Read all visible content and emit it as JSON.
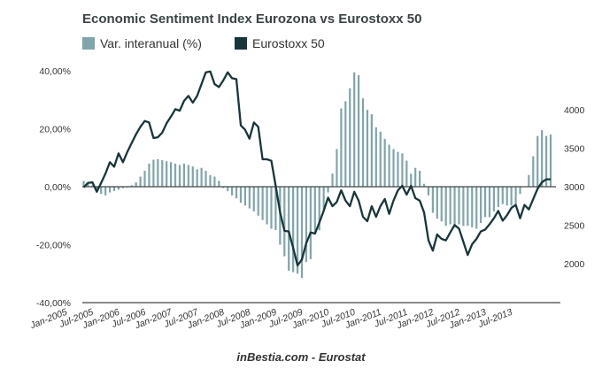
{
  "chart_data": {
    "type": "bar+line",
    "title": "Economic Sentiment Index Eurozona vs Eurostoxx 50",
    "source": "inBestia.com - Eurostat",
    "legend_placement": "top-left",
    "colors": {
      "bars": "#7fa5ab",
      "line": "#16363b",
      "axis": "#333333"
    },
    "x_tick_labels": [
      "Jan-2005",
      "Jul-2005",
      "Jan-2006",
      "Jul-2006",
      "Jan-2007",
      "Jul-2007",
      "Jan-2008",
      "Jul-2008",
      "Jan-2009",
      "Jul-2009",
      "Jan-2010",
      "Jul-2010",
      "Jan-2011",
      "Jul-2011",
      "Jan-2012",
      "Jul-2012",
      "Jan-2013",
      "Jul-2013"
    ],
    "x_start": "Jan-2005",
    "x_frequency": "monthly",
    "left_axis": {
      "ylim": [
        -40,
        40
      ],
      "ticks": [
        "40,00%",
        "20,00%",
        "0,00%",
        "-20,00%",
        "-40,00%"
      ],
      "tick_values": [
        40,
        20,
        0,
        -20,
        -40
      ]
    },
    "right_axis": {
      "ylim": [
        1494,
        4506
      ],
      "ticks": [
        "4000",
        "3500",
        "3000",
        "2500",
        "2000"
      ],
      "tick_values": [
        4000,
        3500,
        3000,
        2500,
        2000
      ]
    },
    "series": [
      {
        "name": "Var. interanual (%)",
        "type": "bar",
        "axis": "left",
        "values": [
          2,
          1,
          0.5,
          -2,
          -2.5,
          -3,
          -2,
          -1.5,
          -1,
          -0.5,
          -0.3,
          0.5,
          1.5,
          3.5,
          5.5,
          8,
          9.3,
          9.5,
          9.2,
          8.8,
          8.5,
          8,
          7.5,
          8,
          7.5,
          7,
          6,
          6.5,
          5.5,
          4,
          3.5,
          2,
          -0.5,
          -1.5,
          -3,
          -4,
          -5.5,
          -6.5,
          -7.5,
          -8.5,
          -10,
          -11.5,
          -13,
          -14.5,
          -15,
          -20,
          -24,
          -29,
          -29.5,
          -30,
          -31.5,
          -26,
          -25,
          -16,
          -15,
          -8,
          -2,
          4.5,
          13,
          27,
          29.5,
          34,
          39.5,
          38.5,
          30.5,
          26.5,
          25,
          20.5,
          19,
          16.5,
          14.5,
          13,
          12,
          11.5,
          9,
          4.5,
          6.5,
          5.5,
          1,
          -3,
          -9,
          -11,
          -12,
          -13.5,
          -13,
          -13,
          -13,
          -13.5,
          -13.5,
          -14,
          -14.5,
          -12.5,
          -10.5,
          -10.5,
          -8.5,
          -7,
          -6,
          -6.5,
          -6.5,
          -6,
          -2.5,
          0,
          4,
          10.5,
          17.5,
          19.5,
          17.5,
          18
        ]
      },
      {
        "name": "Eurostoxx 50",
        "type": "line",
        "axis": "right",
        "values": [
          2992,
          3050,
          3057,
          2935,
          3050,
          3172,
          3318,
          3260,
          3433,
          3318,
          3452,
          3567,
          3682,
          3778,
          3854,
          3835,
          3632,
          3643,
          3701,
          3824,
          3911,
          4007,
          3988,
          4115,
          4180,
          4092,
          4180,
          4333,
          4486,
          4497,
          4333,
          4295,
          4383,
          4486,
          4410,
          4398,
          3797,
          3739,
          3624,
          3835,
          3778,
          3356,
          3356,
          3337,
          3011,
          2667,
          2429,
          2418,
          2207,
          1977,
          2054,
          2265,
          2406,
          2391,
          2533,
          2686,
          2859,
          2747,
          2801,
          2954,
          2820,
          2747,
          2935,
          2820,
          2609,
          2552,
          2747,
          2609,
          2747,
          2840,
          2647,
          2820,
          2954,
          3011,
          2897,
          3011,
          2851,
          2820,
          2667,
          2303,
          2169,
          2380,
          2322,
          2303,
          2406,
          2502,
          2456,
          2284,
          2112,
          2253,
          2322,
          2418,
          2444,
          2513,
          2590,
          2686,
          2559,
          2629,
          2724,
          2763,
          2590,
          2763,
          2705,
          2840,
          2974,
          3057,
          3096,
          3096
        ]
      }
    ]
  }
}
